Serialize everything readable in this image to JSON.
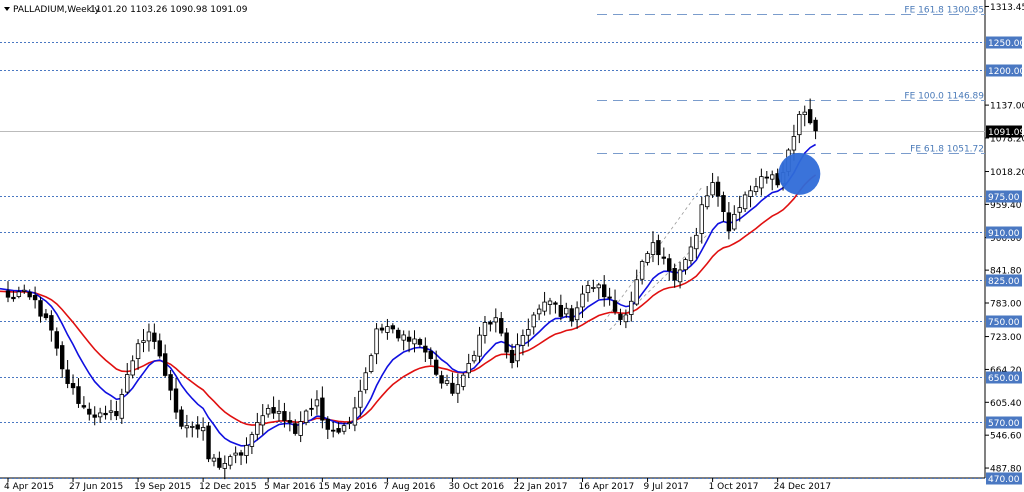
{
  "header": {
    "symbol": "PALLADIUM,Weekly",
    "ohlc": "1101.20 1103.26 1090.98 1091.09"
  },
  "colors": {
    "ema_fast": "#1010e0",
    "ema_slow": "#e01010",
    "level": "#4a78c2",
    "fib": "#7a9ccc",
    "candle": "#000000",
    "highlight": "#2f6bd8",
    "price_line": "#bbbbbb"
  },
  "chart_data": {
    "type": "candlestick",
    "title": "PALLADIUM,Weekly",
    "ylim": [
      470.0,
      1325.0
    ],
    "y_ticks": [
      {
        "label": "1313.45",
        "value": 1313.45
      },
      {
        "label": "1137.00",
        "value": 1137.0
      },
      {
        "label": "1078.20",
        "value": 1078.2
      },
      {
        "label": "1018.20",
        "value": 1018.2
      },
      {
        "label": "959.40",
        "value": 959.4
      },
      {
        "label": "900.00",
        "value": 900.0
      },
      {
        "label": "841.80",
        "value": 841.8
      },
      {
        "label": "783.00",
        "value": 783.0
      },
      {
        "label": "723.00",
        "value": 723.0
      },
      {
        "label": "664.20",
        "value": 664.2
      },
      {
        "label": "605.40",
        "value": 605.4
      },
      {
        "label": "546.60",
        "value": 546.6
      },
      {
        "label": "487.80",
        "value": 487.8
      }
    ],
    "x_ticks": [
      {
        "label": "4 Apr 2015",
        "index": 0
      },
      {
        "label": "27 Jun 2015",
        "index": 12
      },
      {
        "label": "19 Sep 2015",
        "index": 24
      },
      {
        "label": "12 Dec 2015",
        "index": 36
      },
      {
        "label": "5 Mar 2016",
        "index": 48
      },
      {
        "label": "15 May 2016",
        "index": 58
      },
      {
        "label": "7 Aug 2016",
        "index": 70
      },
      {
        "label": "30 Oct 2016",
        "index": 82
      },
      {
        "label": "22 Jan 2017",
        "index": 94
      },
      {
        "label": "16 Apr 2017",
        "index": 106
      },
      {
        "label": "9 Jul 2017",
        "index": 118
      },
      {
        "label": "1 Oct 2017",
        "index": 130
      },
      {
        "label": "24 Dec 2017",
        "index": 142
      }
    ],
    "levels": [
      {
        "label": "1250.00",
        "value": 1250.0
      },
      {
        "label": "1200.00",
        "value": 1200.0
      },
      {
        "label": "975.00",
        "value": 975.0
      },
      {
        "label": "910.00",
        "value": 910.0
      },
      {
        "label": "825.00",
        "value": 825.0
      },
      {
        "label": "750.00",
        "value": 750.0
      },
      {
        "label": "650.00",
        "value": 650.0
      },
      {
        "label": "570.00",
        "value": 570.0
      },
      {
        "label": "470.00",
        "value": 470.0
      }
    ],
    "fib_levels": [
      {
        "label": "FE 161.8 1300.85",
        "value": 1300.85
      },
      {
        "label": "FE 100.0 1146.89",
        "value": 1146.89
      },
      {
        "label": "FE 61.8 1051.72",
        "value": 1051.72
      }
    ],
    "current_price": {
      "label": "1091.09",
      "value": 1091.09
    },
    "anchors": [
      [
        0,
        790
      ],
      [
        2,
        800
      ],
      [
        5,
        785
      ],
      [
        8,
        730
      ],
      [
        10,
        660
      ],
      [
        12,
        625
      ],
      [
        14,
        595
      ],
      [
        16,
        585
      ],
      [
        18,
        575
      ],
      [
        20,
        590
      ],
      [
        22,
        650
      ],
      [
        24,
        715
      ],
      [
        26,
        722
      ],
      [
        28,
        690
      ],
      [
        30,
        620
      ],
      [
        32,
        570
      ],
      [
        34,
        565
      ],
      [
        36,
        550
      ],
      [
        37,
        505
      ],
      [
        39,
        495
      ],
      [
        41,
        500
      ],
      [
        43,
        515
      ],
      [
        45,
        540
      ],
      [
        47,
        590
      ],
      [
        49,
        595
      ],
      [
        51,
        575
      ],
      [
        53,
        555
      ],
      [
        55,
        592
      ],
      [
        57,
        600
      ],
      [
        58,
        575
      ],
      [
        60,
        560
      ],
      [
        62,
        560
      ],
      [
        64,
        600
      ],
      [
        66,
        660
      ],
      [
        68,
        730
      ],
      [
        70,
        740
      ],
      [
        72,
        718
      ],
      [
        74,
        725
      ],
      [
        76,
        710
      ],
      [
        78,
        680
      ],
      [
        80,
        640
      ],
      [
        82,
        628
      ],
      [
        84,
        645
      ],
      [
        86,
        700
      ],
      [
        88,
        745
      ],
      [
        90,
        750
      ],
      [
        92,
        700
      ],
      [
        93,
        670
      ],
      [
        95,
        725
      ],
      [
        97,
        760
      ],
      [
        100,
        785
      ],
      [
        102,
        768
      ],
      [
        104,
        760
      ],
      [
        106,
        800
      ],
      [
        108,
        815
      ],
      [
        110,
        800
      ],
      [
        112,
        770
      ],
      [
        113,
        755
      ],
      [
        115,
        790
      ],
      [
        117,
        850
      ],
      [
        119,
        880
      ],
      [
        121,
        855
      ],
      [
        123,
        835
      ],
      [
        125,
        860
      ],
      [
        127,
        900
      ],
      [
        128,
        955
      ],
      [
        130,
        995
      ],
      [
        131,
        965
      ],
      [
        133,
        920
      ],
      [
        135,
        960
      ],
      [
        137,
        985
      ],
      [
        139,
        1005
      ],
      [
        141,
        1015
      ],
      [
        142,
        1000
      ],
      [
        143,
        1020
      ],
      [
        144,
        1065
      ],
      [
        145,
        1080
      ],
      [
        146,
        1110
      ],
      [
        147,
        1120
      ],
      [
        148,
        1105
      ],
      [
        149,
        1091
      ]
    ]
  }
}
